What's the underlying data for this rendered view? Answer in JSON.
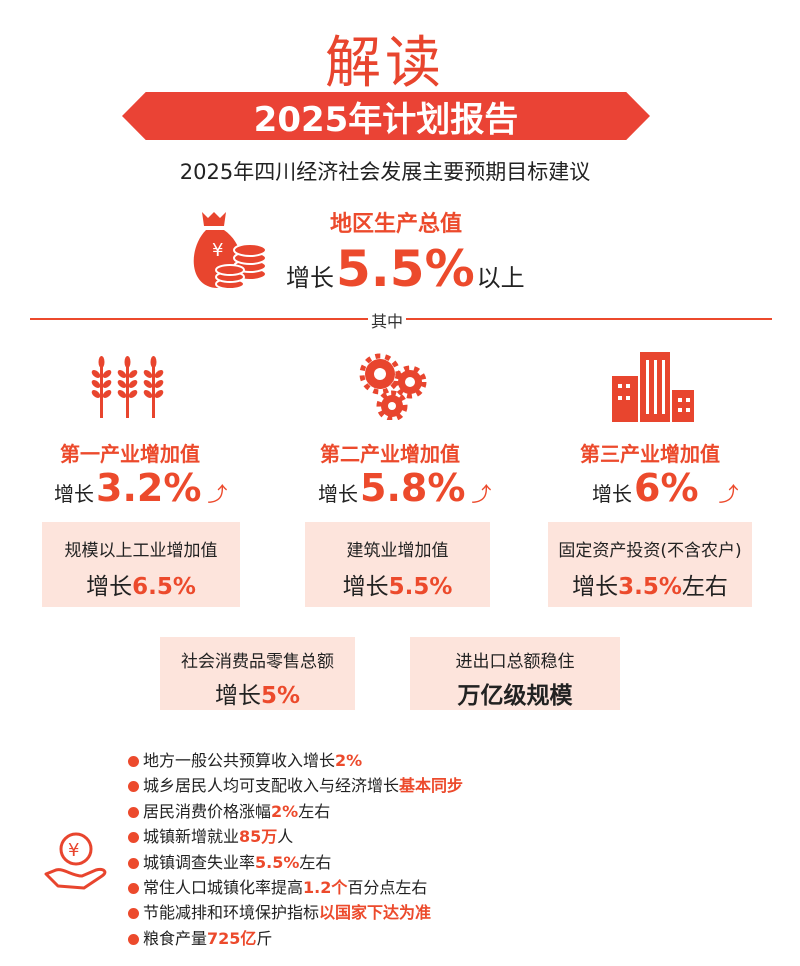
{
  "header": {
    "title": "解读",
    "banner": "2025年计划报告",
    "subtitle": "2025年四川经济社会发展主要预期目标建议"
  },
  "gdp": {
    "label": "地区生产总值",
    "prefix": "增长",
    "value": "5.5%",
    "suffix": "以上"
  },
  "divider_label": "其中",
  "industries": [
    {
      "title": "第一产业增加值",
      "prefix": "增长",
      "value": "3.2%",
      "icon": "wheat-icon"
    },
    {
      "title": "第二产业增加值",
      "prefix": "增长",
      "value": "5.8%",
      "icon": "gears-icon"
    },
    {
      "title": "第三产业增加值",
      "prefix": "增长",
      "value": "6%",
      "icon": "buildings-icon"
    }
  ],
  "boxes": [
    {
      "label": "规模以上工业增加值",
      "prefix": "增长",
      "value": "6.5%",
      "suffix": ""
    },
    {
      "label": "建筑业增加值",
      "prefix": "增长",
      "value": "5.5%",
      "suffix": ""
    },
    {
      "label": "固定资产投资(不含农户)",
      "prefix": "增长",
      "value": "3.5%",
      "suffix": "左右"
    },
    {
      "label": "社会消费品零售总额",
      "prefix": "增长",
      "value": "5%",
      "suffix": ""
    },
    {
      "label": "进出口总额稳住",
      "prefix": "",
      "value": "万亿级规模",
      "suffix": ""
    }
  ],
  "bullets": [
    {
      "text": "地方一般公共预算收入增长",
      "hl": "2%",
      "after": ""
    },
    {
      "text": "城乡居民人均可支配收入与经济增长",
      "hl": "基本同步",
      "after": ""
    },
    {
      "text": "居民消费价格涨幅",
      "hl": "2%",
      "after": "左右"
    },
    {
      "text": "城镇新增就业",
      "hl": "85万",
      "after": "人"
    },
    {
      "text": "城镇调查失业率",
      "hl": "5.5%",
      "after": "左右"
    },
    {
      "text": "常住人口城镇化率提高",
      "hl": "1.2个",
      "after": "百分点左右"
    },
    {
      "text": "节能减排和环境保护指标",
      "hl": "以国家下达为准",
      "after": ""
    },
    {
      "text": "粮食产量",
      "hl": "725亿",
      "after": "斤"
    }
  ],
  "colors": {
    "accent": "#ec4a2c",
    "box": "#fde4dc"
  }
}
